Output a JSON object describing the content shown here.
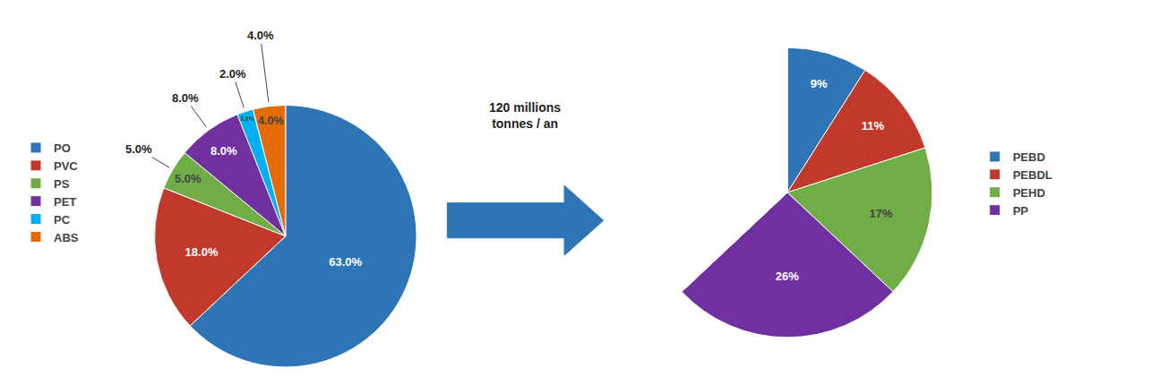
{
  "chart_data": [
    {
      "type": "pie",
      "categories": [
        "PO",
        "PVC",
        "PS",
        "PET",
        "PC",
        "ABS"
      ],
      "values": [
        63.0,
        18.0,
        5.0,
        8.0,
        2.0,
        4.0
      ],
      "value_labels": [
        "63.0%",
        "18.0%",
        "5.0%",
        "8.0%",
        "2.0%",
        "4.0%"
      ],
      "colors": [
        "#2E75B6",
        "#C0392B",
        "#70AD47",
        "#7030A0",
        "#00B0F0",
        "#E36C09"
      ],
      "data_labels": true,
      "legend": "left",
      "annotations": [
        {
          "text": "8.0%",
          "category": "PET"
        },
        {
          "text": "2.0%",
          "category": "PC"
        },
        {
          "text": "4.0%",
          "category": "ABS"
        },
        {
          "text": "5.0%",
          "category": "PS"
        }
      ]
    },
    {
      "type": "pie",
      "categories": [
        "PEBD",
        "PEBDL",
        "PEHD",
        "PP",
        null
      ],
      "values": [
        9,
        11,
        17,
        26,
        37
      ],
      "value_labels": [
        "9%",
        "11%",
        "17%",
        "26%",
        null
      ],
      "colors": [
        "#2E75B6",
        "#C0392B",
        "#70AD47",
        "#7030A0",
        "#FFFFFF"
      ],
      "data_labels": true,
      "legend": "right",
      "annotations": [
        {
          "text": [
            "120 millions",
            "tonnes / an"
          ],
          "color": "#2E75B6"
        }
      ]
    }
  ]
}
